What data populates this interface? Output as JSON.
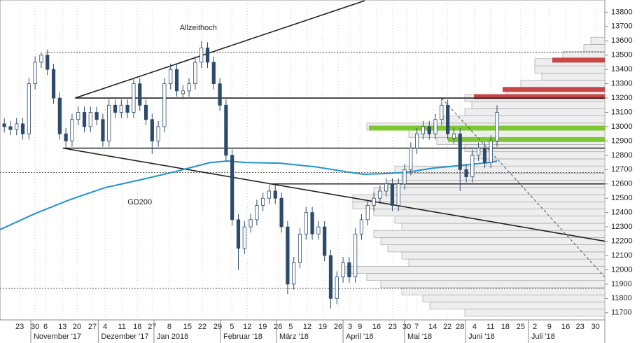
{
  "chart_data": {
    "type": "candlestick",
    "x": [
      -5,
      -3,
      -1,
      1,
      3,
      5,
      7,
      9,
      11,
      13,
      15,
      17,
      19,
      21,
      23,
      25,
      27,
      29,
      31,
      33,
      35,
      37,
      39,
      41,
      43,
      45,
      47,
      49,
      51,
      53,
      55,
      57,
      59,
      61,
      63,
      65,
      67,
      69,
      71,
      73,
      75,
      77,
      79,
      81,
      83,
      85,
      87,
      89,
      91,
      93,
      95,
      97,
      99,
      101,
      103,
      105,
      107,
      109,
      111,
      113,
      115,
      117,
      119,
      121,
      123,
      125,
      127,
      129,
      131,
      133,
      135,
      137,
      139,
      141,
      143,
      145,
      147,
      149,
      151,
      153,
      155
    ],
    "open": [
      13020,
      13000,
      12980,
      13020,
      12950,
      13300,
      13450,
      13500,
      13400,
      13200,
      12950,
      12900,
      13050,
      13100,
      13000,
      13100,
      13050,
      12900,
      13150,
      13100,
      13150,
      13100,
      13300,
      13150,
      13050,
      12900,
      13000,
      13300,
      13400,
      13230,
      13250,
      13300,
      13450,
      13550,
      13450,
      13300,
      13150,
      12800,
      12350,
      12150,
      12300,
      12350,
      12450,
      12500,
      12550,
      12500,
      12300,
      11900,
      12050,
      12250,
      12400,
      12250,
      12300,
      12100,
      11800,
      11950,
      12050,
      11950,
      12250,
      12350,
      12450,
      12500,
      12550,
      12600,
      12450,
      12600,
      12700,
      12850,
      12950,
      13000,
      12950,
      13050,
      13150,
      12920,
      12950,
      12700,
      12650,
      12800,
      12850,
      12750,
      12900
    ],
    "high": [
      13060,
      13040,
      13060,
      13060,
      13340,
      13490,
      13520,
      13540,
      13440,
      13240,
      12990,
      13090,
      13140,
      13140,
      13140,
      13140,
      13090,
      13190,
      13190,
      13190,
      13190,
      13340,
      13340,
      13190,
      13090,
      13040,
      13340,
      13440,
      13440,
      13290,
      13340,
      13490,
      13597,
      13590,
      13490,
      13340,
      13190,
      12840,
      12390,
      12340,
      12390,
      12490,
      12540,
      12590,
      12590,
      12540,
      12340,
      12090,
      12290,
      12440,
      12440,
      12340,
      12340,
      12140,
      11990,
      12090,
      12090,
      12290,
      12390,
      12490,
      12540,
      12590,
      12640,
      12640,
      12640,
      12740,
      12890,
      12990,
      13040,
      13040,
      13090,
      13200,
      13190,
      12990,
      12990,
      12740,
      12840,
      12890,
      12890,
      12940,
      13150
    ],
    "low": [
      12960,
      12940,
      12940,
      12910,
      12910,
      13260,
      13410,
      13360,
      13160,
      12910,
      12850,
      12860,
      13010,
      12960,
      12960,
      13010,
      12860,
      12860,
      13060,
      13060,
      13060,
      13060,
      13110,
      13010,
      12810,
      12860,
      12960,
      13260,
      13210,
      13190,
      13210,
      13260,
      13410,
      13410,
      13260,
      13110,
      12760,
      12310,
      12000,
      12110,
      12260,
      12310,
      12410,
      12460,
      12460,
      12260,
      11830,
      11860,
      12010,
      12210,
      12210,
      12210,
      12060,
      11730,
      11760,
      11910,
      11910,
      11910,
      12210,
      12310,
      12410,
      12460,
      12510,
      12410,
      12410,
      12560,
      12660,
      12810,
      12910,
      12910,
      12910,
      13010,
      12910,
      12880,
      12550,
      12610,
      12610,
      12760,
      12710,
      12710,
      12860
    ],
    "close": [
      13000,
      12980,
      13020,
      12950,
      13300,
      13450,
      13500,
      13400,
      13200,
      12950,
      12900,
      13050,
      13100,
      13000,
      13100,
      13050,
      12900,
      13150,
      13100,
      13150,
      13100,
      13300,
      13150,
      13050,
      12900,
      13000,
      13300,
      13400,
      13250,
      13250,
      13300,
      13450,
      13550,
      13450,
      13300,
      13150,
      12800,
      12350,
      12150,
      12300,
      12350,
      12450,
      12500,
      12550,
      12500,
      12300,
      11900,
      12050,
      12250,
      12400,
      12250,
      12300,
      12100,
      11800,
      11950,
      12050,
      11950,
      12250,
      12350,
      12450,
      12500,
      12550,
      12600,
      12450,
      12600,
      12700,
      12850,
      12950,
      13000,
      12950,
      13050,
      13150,
      12950,
      12950,
      12700,
      12650,
      12800,
      12850,
      12750,
      12900,
      13100
    ],
    "color": "#2d4a6a",
    "xlim": [
      -6.4,
      190
    ],
    "ylim": [
      11650,
      13885
    ],
    "yticks": [
      11700,
      11800,
      11900,
      12000,
      12100,
      12200,
      12300,
      12400,
      12500,
      12600,
      12700,
      12800,
      12900,
      13000,
      13100,
      13200,
      13300,
      13400,
      13500,
      13600,
      13700,
      13800
    ],
    "xticks": [
      {
        "value": 0,
        "label": "23"
      },
      {
        "value": 5,
        "label": "30"
      },
      {
        "value": 8.4,
        "label": "6"
      },
      {
        "value": 13.9,
        "label": "13"
      },
      {
        "value": 18.6,
        "label": "20"
      },
      {
        "value": 23.6,
        "label": "27"
      },
      {
        "value": 27.7,
        "label": "4"
      },
      {
        "value": 33.2,
        "label": "11"
      },
      {
        "value": 38.2,
        "label": "18"
      },
      {
        "value": 43,
        "label": "27"
      },
      {
        "value": 48.6,
        "label": "8"
      },
      {
        "value": 54.5,
        "label": "15"
      },
      {
        "value": 59.3,
        "label": "22"
      },
      {
        "value": 64.3,
        "label": "29"
      },
      {
        "value": 68.9,
        "label": "5"
      },
      {
        "value": 73.9,
        "label": "12"
      },
      {
        "value": 78.9,
        "label": "19"
      },
      {
        "value": 83.9,
        "label": "26"
      },
      {
        "value": 88,
        "label": "5"
      },
      {
        "value": 93.4,
        "label": "12"
      },
      {
        "value": 98.4,
        "label": "19"
      },
      {
        "value": 103.4,
        "label": "26"
      },
      {
        "value": 107.3,
        "label": "3"
      },
      {
        "value": 110.5,
        "label": "9"
      },
      {
        "value": 115.9,
        "label": "16"
      },
      {
        "value": 121.1,
        "label": "23"
      },
      {
        "value": 125.7,
        "label": "30"
      },
      {
        "value": 128.9,
        "label": "7"
      },
      {
        "value": 134.1,
        "label": "14"
      },
      {
        "value": 138.9,
        "label": "22"
      },
      {
        "value": 143,
        "label": "28"
      },
      {
        "value": 147.7,
        "label": "4"
      },
      {
        "value": 152.9,
        "label": "11"
      },
      {
        "value": 157.7,
        "label": "18"
      },
      {
        "value": 162.7,
        "label": "25"
      },
      {
        "value": 167.3,
        "label": "2"
      },
      {
        "value": 172,
        "label": "9"
      },
      {
        "value": 177.3,
        "label": "16"
      },
      {
        "value": 182,
        "label": "23"
      },
      {
        "value": 187,
        "label": "30"
      }
    ],
    "months": [
      {
        "value": 3.6,
        "label": "November '17"
      },
      {
        "value": 25.5,
        "label": "Dezember '17"
      },
      {
        "value": 43.6,
        "label": "Jan 2018"
      },
      {
        "value": 65.2,
        "label": "Februar '18"
      },
      {
        "value": 83.4,
        "label": "März '18"
      },
      {
        "value": 105,
        "label": "April '18"
      },
      {
        "value": 125,
        "label": "Mai '18"
      },
      {
        "value": 144.8,
        "label": "Juni '18"
      },
      {
        "value": 165.2,
        "label": "Juli '18"
      }
    ],
    "grid": true,
    "volume_profile": {
      "levels": [
        11700,
        11750,
        11800,
        11850,
        11900,
        11950,
        12000,
        12050,
        12100,
        12150,
        12200,
        12250,
        12300,
        12350,
        12400,
        12450,
        12500,
        12550,
        12600,
        12650,
        12700,
        12750,
        12800,
        12850,
        12900,
        12950,
        13000,
        13050,
        13100,
        13150,
        13200,
        13250,
        13300,
        13350,
        13400,
        13450,
        13500,
        13550,
        13600
      ],
      "values": [
        200,
        250,
        260,
        290,
        320,
        340,
        370,
        280,
        290,
        310,
        320,
        330,
        290,
        300,
        330,
        360,
        360,
        330,
        310,
        290,
        300,
        170,
        190,
        200,
        240,
        280,
        340,
        230,
        200,
        190,
        200,
        140,
        120,
        90,
        100,
        100,
        60,
        30,
        20
      ],
      "color": "#eeeeee"
    },
    "highlights": {
      "levels": [
        12990,
        12910,
        13210,
        13260,
        13465
      ],
      "values": [
        337,
        224,
        187,
        146,
        75
      ],
      "colors": [
        "#7dc832",
        "#7dc832",
        "#c84646",
        "#c84646",
        "#c84646"
      ]
    },
    "lines": [
      {
        "x": [
          18,
          190
        ],
        "y": [
          13200,
          13200
        ],
        "style": "solid"
      },
      {
        "x": [
          14,
          190
        ],
        "y": [
          12850,
          12850
        ],
        "style": "solid"
      },
      {
        "x": [
          81,
          190
        ],
        "y": [
          12600,
          12600
        ],
        "style": "solid"
      },
      {
        "x": [
          8.4,
          190
        ],
        "y": [
          13520,
          13520
        ],
        "style": "dotted"
      },
      {
        "x": [
          -6.4,
          190
        ],
        "y": [
          12680,
          12680
        ],
        "style": "dotted"
      },
      {
        "x": [
          -6.4,
          190
        ],
        "y": [
          11870,
          11870
        ],
        "style": "dotted"
      },
      {
        "x": [
          18,
          112
        ],
        "y": [
          13200,
          13880
        ],
        "style": "solid"
      },
      {
        "x": [
          14,
          190
        ],
        "y": [
          12850,
          12200
        ],
        "style": "solid"
      },
      {
        "x": [
          137,
          190
        ],
        "y": [
          13200,
          11950
        ],
        "style": "dashed"
      }
    ],
    "gd200": {
      "name": "GD200",
      "color": "#1f93d0",
      "x": [
        -6.4,
        5,
        16.4,
        27.7,
        39.1,
        50.5,
        61.8,
        67.5,
        73.2,
        84.5,
        95.9,
        107.3,
        111.8,
        118.6,
        125.5,
        134.5,
        143.6,
        152.7,
        155
      ],
      "values": [
        12281,
        12393,
        12491,
        12574,
        12628,
        12686,
        12749,
        12760,
        12750,
        12745,
        12720,
        12681,
        12667,
        12672,
        12681,
        12711,
        12730,
        12750,
        12760
      ]
    },
    "annotations": [
      {
        "text": "Allzeithoch",
        "x": 58,
        "y": 13690
      },
      {
        "text": "GD200",
        "x": 39,
        "y": 12470
      }
    ]
  }
}
